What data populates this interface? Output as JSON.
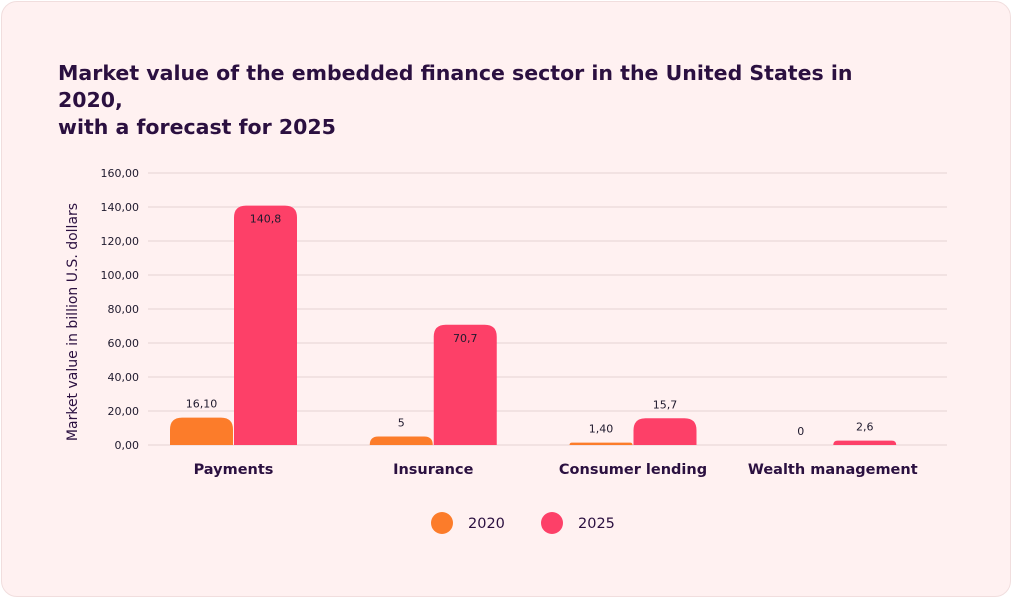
{
  "title_lines": [
    "Market value of the embedded finance sector in the United States in 2020,",
    "with a forecast for 2025"
  ],
  "colors": {
    "series_2020": "#fc7c2a",
    "series_2025": "#fd4068",
    "card_background": "#fff1f1",
    "text": "#2b1040"
  },
  "chart_data": {
    "type": "bar",
    "title": "Market value of the embedded finance sector in the United States in 2020, with a forecast for 2025",
    "xlabel": "",
    "ylabel": "Market value in billion U.S. dollars",
    "ylim": [
      0,
      160
    ],
    "yticks": [
      "0,00",
      "20,00",
      "40,00",
      "60,00",
      "80,00",
      "100,00",
      "120,00",
      "140,00",
      "160,00"
    ],
    "categories": [
      "Payments",
      "Insurance",
      "Consumer lending",
      "Wealth management"
    ],
    "series": [
      {
        "name": "2020",
        "values": [
          16.1,
          5,
          1.4,
          0
        ],
        "labels": [
          "16,10",
          "5",
          "1,40",
          "0"
        ]
      },
      {
        "name": "2025",
        "values": [
          140.8,
          70.7,
          15.7,
          2.6
        ],
        "labels": [
          "140,8",
          "70,7",
          "15,7",
          "2,6"
        ]
      }
    ],
    "grid": true,
    "legend": "bottom"
  }
}
